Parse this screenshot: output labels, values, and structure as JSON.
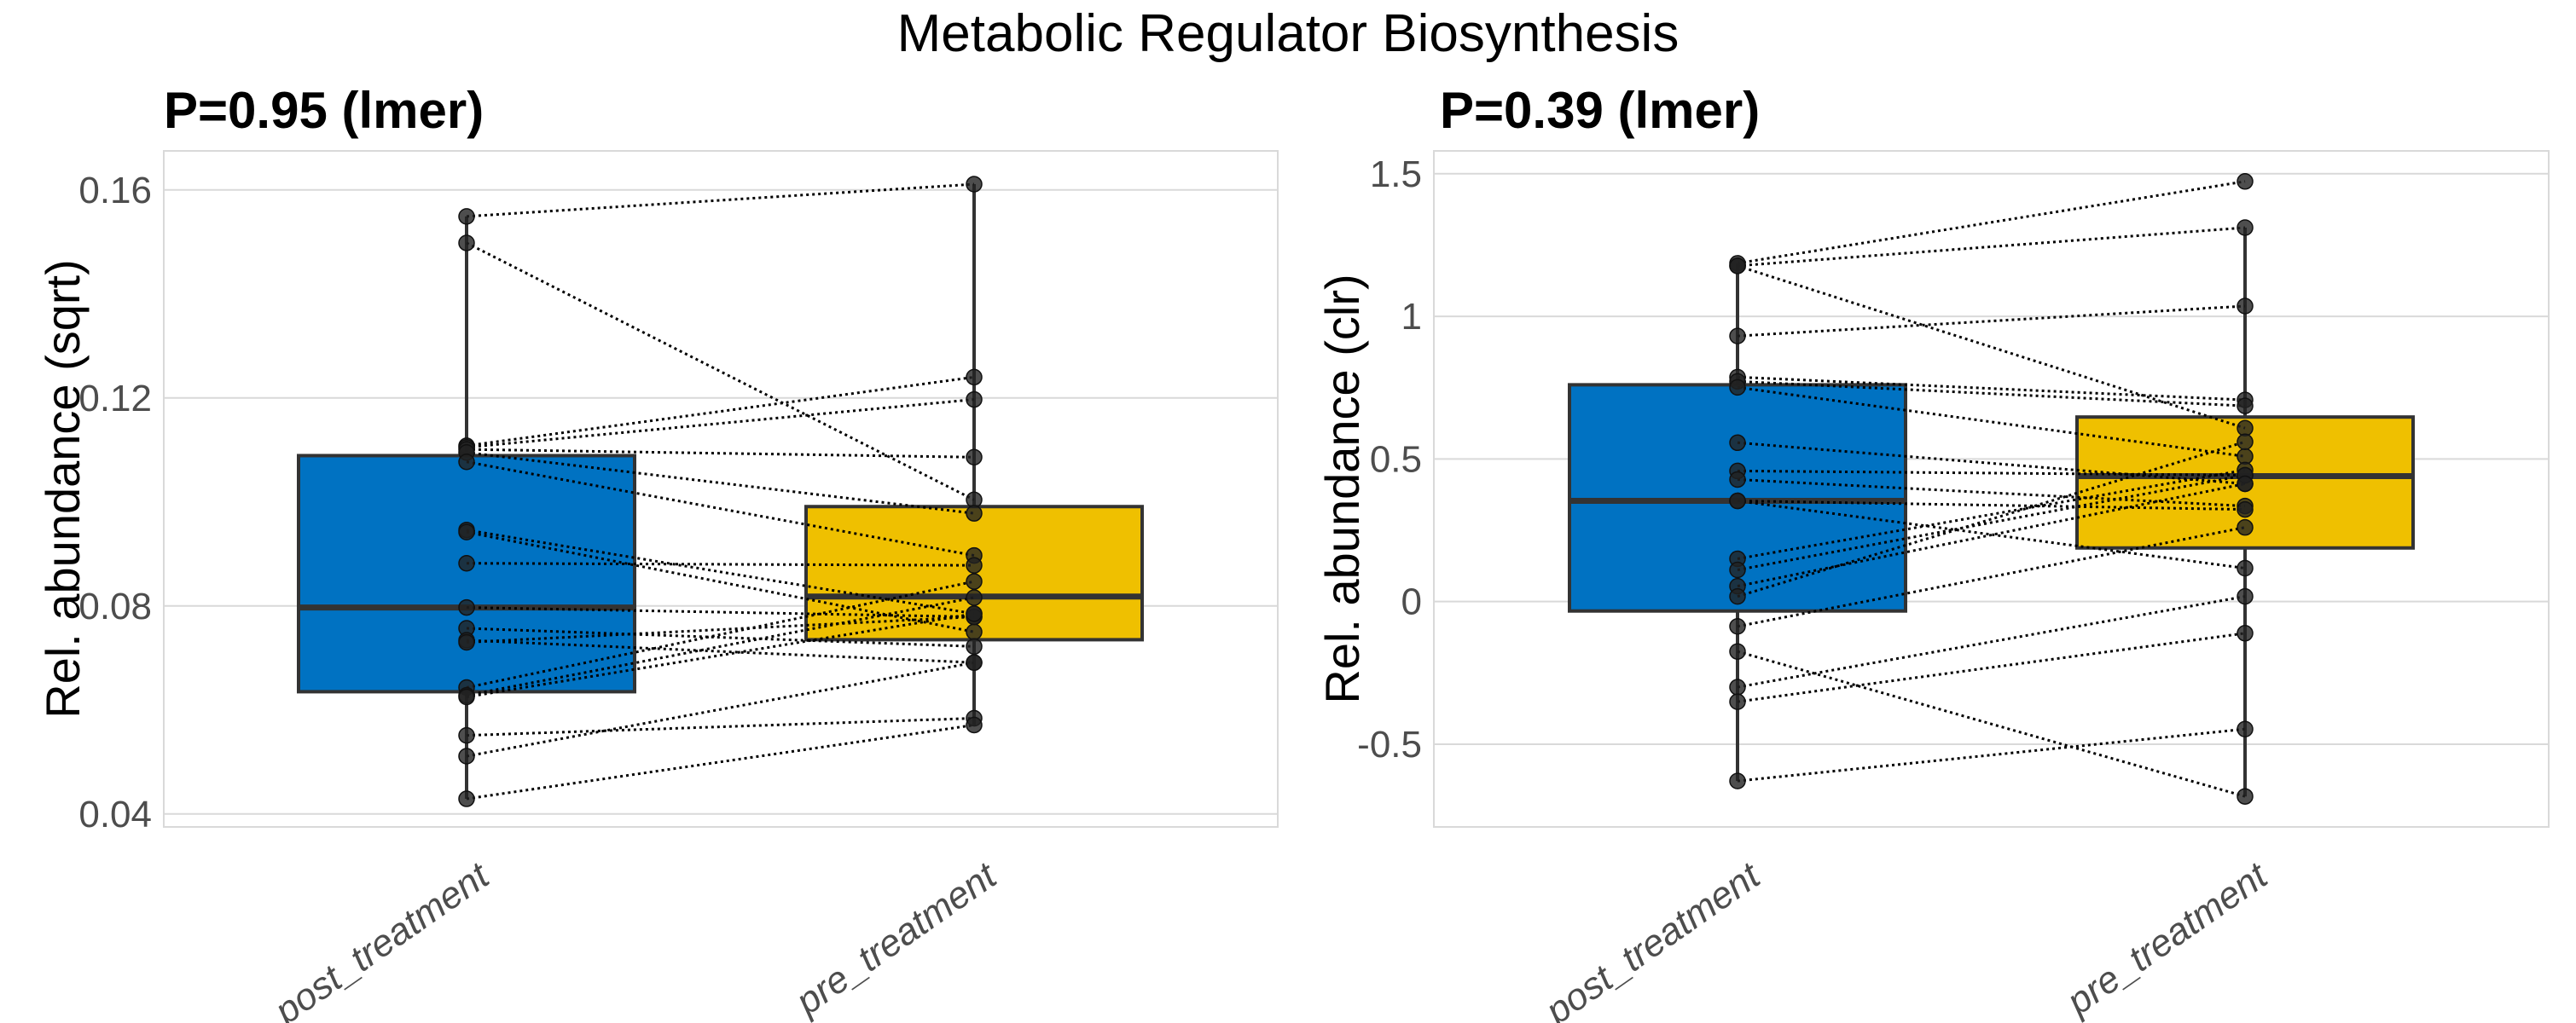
{
  "figure": {
    "title": "Metabolic Regulator Biosynthesis"
  },
  "colors": {
    "post_treatment": "#0072C2",
    "pre_treatment": "#EFC000",
    "point": "#222222",
    "grid": "#d9d9d9",
    "box_edge": "#333333"
  },
  "chart_data": [
    {
      "type": "box",
      "title": "P=0.95 (lmer)",
      "xlabel": "",
      "ylabel": "Rel. abundance (sqrt)",
      "categories": [
        "post_treatment",
        "pre_treatment"
      ],
      "ylim": [
        0.0375,
        0.1675
      ],
      "yticks": [
        0.04,
        0.08,
        0.12,
        0.16
      ],
      "ytick_labels": [
        "0.04",
        "0.08",
        "0.12",
        "0.16"
      ],
      "grid": true,
      "boxes": [
        {
          "category": "post_treatment",
          "q1": 0.0635,
          "median": 0.0797,
          "q3": 0.1089,
          "whisker_low": 0.0429,
          "whisker_high": 0.1549
        },
        {
          "category": "pre_treatment",
          "q1": 0.0735,
          "median": 0.0818,
          "q3": 0.0991,
          "whisker_low": 0.0571,
          "whisker_high": 0.1611
        }
      ],
      "paired_points": [
        {
          "post": 0.1549,
          "pre": 0.1611
        },
        {
          "post": 0.1498,
          "pre": 0.1004
        },
        {
          "post": 0.1108,
          "pre": 0.124
        },
        {
          "post": 0.1105,
          "pre": 0.1197
        },
        {
          "post": 0.1101,
          "pre": 0.1086
        },
        {
          "post": 0.1095,
          "pre": 0.0978
        },
        {
          "post": 0.1077,
          "pre": 0.0897
        },
        {
          "post": 0.0946,
          "pre": 0.0785
        },
        {
          "post": 0.0942,
          "pre": 0.075
        },
        {
          "post": 0.0882,
          "pre": 0.0878
        },
        {
          "post": 0.0797,
          "pre": 0.0779
        },
        {
          "post": 0.0757,
          "pre": 0.0722
        },
        {
          "post": 0.0734,
          "pre": 0.0691
        },
        {
          "post": 0.073,
          "pre": 0.0779
        },
        {
          "post": 0.0643,
          "pre": 0.0847
        },
        {
          "post": 0.0628,
          "pre": 0.0816
        },
        {
          "post": 0.0625,
          "pre": 0.0785
        },
        {
          "post": 0.0551,
          "pre": 0.0584
        },
        {
          "post": 0.0511,
          "pre": 0.0691
        },
        {
          "post": 0.0429,
          "pre": 0.0571
        }
      ]
    },
    {
      "type": "box",
      "title": "P=0.39 (lmer)",
      "xlabel": "",
      "ylabel": "Rel. abundance (clr)",
      "categories": [
        "post_treatment",
        "pre_treatment"
      ],
      "ylim": [
        -0.79,
        1.58
      ],
      "yticks": [
        -0.5,
        0,
        0.5,
        1,
        1.5
      ],
      "ytick_labels": [
        "-0.5",
        "0",
        "0.5",
        "1",
        "1.5"
      ],
      "grid": true,
      "boxes": [
        {
          "category": "post_treatment",
          "q1": -0.033,
          "median": 0.353,
          "q3": 0.76,
          "whisker_low": -0.629,
          "whisker_high": 1.186
        },
        {
          "category": "pre_treatment",
          "q1": 0.188,
          "median": 0.44,
          "q3": 0.647,
          "whisker_low": -0.683,
          "whisker_high": 1.311
        }
      ],
      "paired_points": [
        {
          "post": 1.186,
          "pre": 1.473
        },
        {
          "post": 1.177,
          "pre": 0.608
        },
        {
          "post": 0.931,
          "pre": 1.036
        },
        {
          "post": 0.787,
          "pre": 0.707
        },
        {
          "post": 0.772,
          "pre": 0.686
        },
        {
          "post": 0.751,
          "pre": 0.509
        },
        {
          "post": 0.557,
          "pre": 0.413
        },
        {
          "post": 0.458,
          "pre": 0.443
        },
        {
          "post": 0.428,
          "pre": 0.335
        },
        {
          "post": 0.353,
          "pre": 0.323
        },
        {
          "post": 0.15,
          "pre": 0.461
        },
        {
          "post": 0.111,
          "pre": 0.443
        },
        {
          "post": 0.054,
          "pre": 0.413
        },
        {
          "post": 0.018,
          "pre": 0.56
        },
        {
          "post": -0.087,
          "pre": 0.26
        },
        {
          "post": -0.175,
          "pre": -0.683
        },
        {
          "post": -0.3,
          "pre": 0.018
        },
        {
          "post": -0.351,
          "pre": -0.111
        },
        {
          "post": -0.629,
          "pre": -0.447
        },
        {
          "post": 0.353,
          "pre": 0.117
        },
        {
          "post": 1.177,
          "pre": 1.311
        }
      ]
    }
  ]
}
